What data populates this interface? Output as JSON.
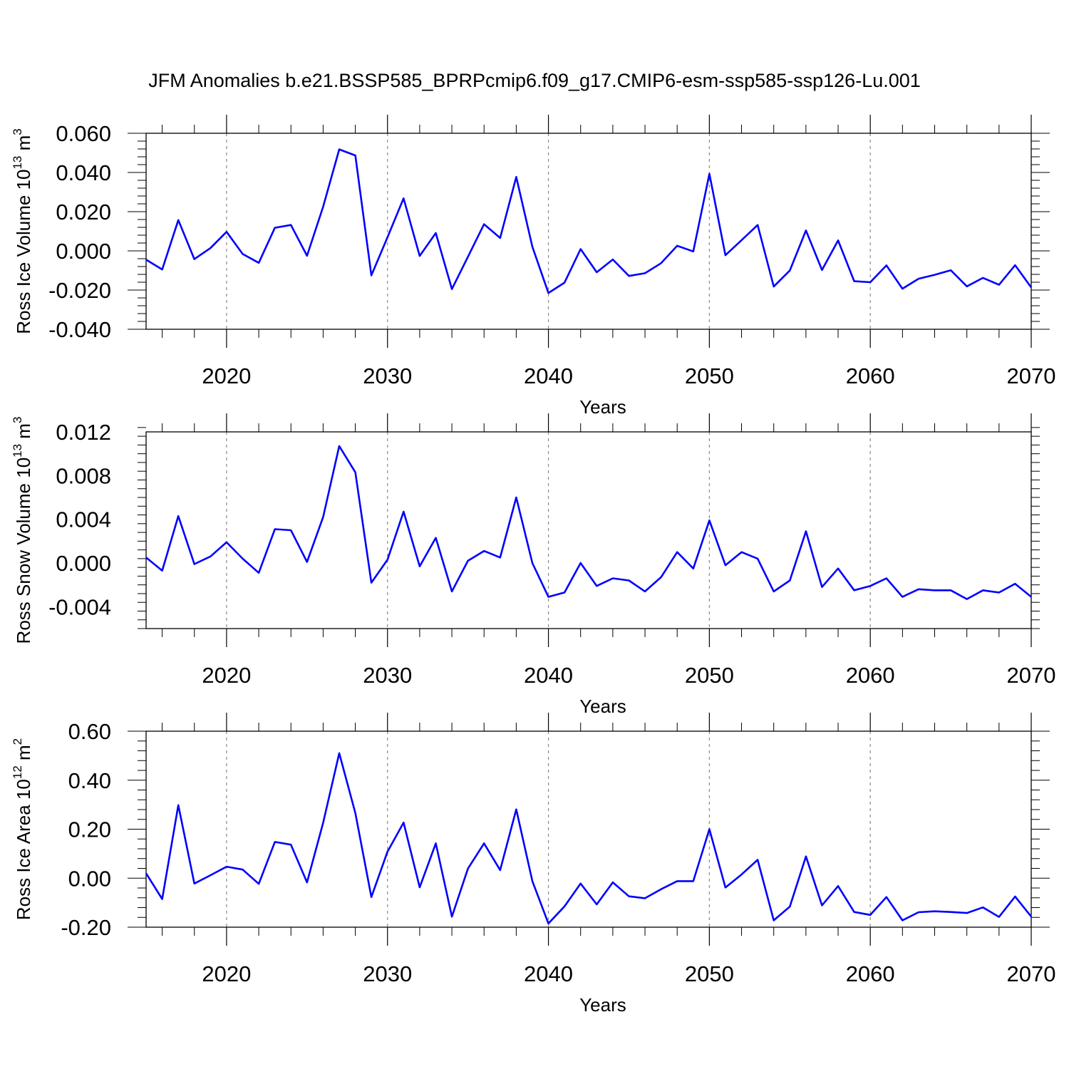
{
  "page": {
    "title": "JFM Anomalies b.e21.BSSP585_BPRPcmip6.f09_g17.CMIP6-esm-ssp585-ssp126-Lu.001"
  },
  "colors": {
    "line": "#0000ff",
    "grid": "#888888",
    "axis": "#000000"
  },
  "chart_data": [
    {
      "type": "line",
      "title": "",
      "xlabel": "Years",
      "ylabel": "Ross Ice Volume 10",
      "ylabel_exp": "13",
      "ylabel_unit": " m",
      "ylabel_unit_exp": "3",
      "xlim": [
        2015,
        2070
      ],
      "ylim": [
        -0.04,
        0.06
      ],
      "xticks": [
        2020,
        2030,
        2040,
        2050,
        2060,
        2070
      ],
      "xtick_labels": [
        "2020",
        "2030",
        "2040",
        "2050",
        "2060",
        "2070"
      ],
      "yticks": [
        -0.04,
        -0.02,
        0.0,
        0.02,
        0.04,
        0.06
      ],
      "ytick_labels": [
        "-0.040",
        "-0.020",
        "0.000",
        "0.020",
        "0.040",
        "0.060"
      ],
      "grid": "vertical dashed at major x ticks",
      "series": [
        {
          "x": [
            2015,
            2016,
            2017,
            2018,
            2019,
            2020,
            2021,
            2022,
            2023,
            2024,
            2025,
            2026,
            2027,
            2028,
            2029,
            2030,
            2031,
            2032,
            2033,
            2034,
            2035,
            2036,
            2037,
            2038,
            2039,
            2040,
            2041,
            2042,
            2043,
            2044,
            2045,
            2046,
            2047,
            2048,
            2049,
            2050,
            2051,
            2052,
            2053,
            2054,
            2055,
            2056,
            2057,
            2058,
            2059,
            2060,
            2061,
            2062,
            2063,
            2064,
            2065,
            2066,
            2067,
            2068,
            2069,
            2070
          ],
          "y": [
            -0.0045,
            -0.0095,
            0.0157,
            -0.0042,
            0.0014,
            0.0097,
            -0.0016,
            -0.0061,
            0.0118,
            0.0132,
            -0.0025,
            0.0225,
            0.0518,
            0.0487,
            -0.0125,
            0.0069,
            0.0268,
            -0.0026,
            0.0091,
            -0.0195,
            -0.003,
            0.0136,
            0.0066,
            0.0377,
            0.0021,
            -0.0215,
            -0.0162,
            0.0009,
            -0.0109,
            -0.0044,
            -0.0128,
            -0.0114,
            -0.0063,
            0.0026,
            -0.0003,
            0.0393,
            -0.0022,
            0.0054,
            0.0132,
            -0.0182,
            -0.01,
            0.0104,
            -0.0098,
            0.0053,
            -0.0155,
            -0.016,
            -0.0074,
            -0.0193,
            -0.0142,
            -0.0122,
            -0.0099,
            -0.0181,
            -0.0138,
            -0.0173,
            -0.0073,
            -0.0187
          ]
        }
      ]
    },
    {
      "type": "line",
      "title": "",
      "xlabel": "Years",
      "ylabel": "Ross Snow Volume 10",
      "ylabel_exp": "13",
      "ylabel_unit": " m",
      "ylabel_unit_exp": "3",
      "xlim": [
        2015,
        2070
      ],
      "ylim": [
        -0.006,
        0.012
      ],
      "xticks": [
        2020,
        2030,
        2040,
        2050,
        2060,
        2070
      ],
      "xtick_labels": [
        "2020",
        "2030",
        "2040",
        "2050",
        "2060",
        "2070"
      ],
      "yticks": [
        -0.004,
        0.0,
        0.004,
        0.008,
        0.012
      ],
      "ytick_labels": [
        "-0.004",
        "0.000",
        "0.004",
        "0.008",
        "0.012"
      ],
      "grid": "vertical dashed at major x ticks",
      "series": [
        {
          "x": [
            2015,
            2016,
            2017,
            2018,
            2019,
            2020,
            2021,
            2022,
            2023,
            2024,
            2025,
            2026,
            2027,
            2028,
            2029,
            2030,
            2031,
            2032,
            2033,
            2034,
            2035,
            2036,
            2037,
            2038,
            2039,
            2040,
            2041,
            2042,
            2043,
            2044,
            2045,
            2046,
            2047,
            2048,
            2049,
            2050,
            2051,
            2052,
            2053,
            2054,
            2055,
            2056,
            2057,
            2058,
            2059,
            2060,
            2061,
            2062,
            2063,
            2064,
            2065,
            2066,
            2067,
            2068,
            2069,
            2070
          ],
          "y": [
            0.0005,
            -0.0007,
            0.0043,
            -0.0001,
            0.0006,
            0.0019,
            0.0004,
            -0.0009,
            0.0031,
            0.003,
            0.0001,
            0.0042,
            0.0107,
            0.0083,
            -0.0018,
            0.0003,
            0.0047,
            -0.0003,
            0.0023,
            -0.0026,
            0.0002,
            0.0011,
            0.0005,
            0.006,
            0.0,
            -0.0031,
            -0.0027,
            0.0,
            -0.0021,
            -0.0014,
            -0.0016,
            -0.0026,
            -0.0013,
            0.001,
            -0.0005,
            0.0039,
            -0.0002,
            0.001,
            0.0004,
            -0.0026,
            -0.0016,
            0.0029,
            -0.0022,
            -0.0005,
            -0.0025,
            -0.0021,
            -0.0014,
            -0.0031,
            -0.0024,
            -0.0025,
            -0.0025,
            -0.0033,
            -0.0025,
            -0.0027,
            -0.0019,
            -0.0031
          ]
        }
      ]
    },
    {
      "type": "line",
      "title": "",
      "xlabel": "Years",
      "ylabel": "Ross Ice Area 10",
      "ylabel_exp": "12",
      "ylabel_unit": " m",
      "ylabel_unit_exp": "2",
      "xlim": [
        2015,
        2070
      ],
      "ylim": [
        -0.2,
        0.6
      ],
      "xticks": [
        2020,
        2030,
        2040,
        2050,
        2060,
        2070
      ],
      "xtick_labels": [
        "2020",
        "2030",
        "2040",
        "2050",
        "2060",
        "2070"
      ],
      "yticks": [
        -0.2,
        0.0,
        0.2,
        0.4,
        0.6
      ],
      "ytick_labels": [
        "-0.20",
        "0.00",
        "0.20",
        "0.40",
        "0.60"
      ],
      "grid": "vertical dashed at major x ticks",
      "series": [
        {
          "x": [
            2015,
            2016,
            2017,
            2018,
            2019,
            2020,
            2021,
            2022,
            2023,
            2024,
            2025,
            2026,
            2027,
            2028,
            2029,
            2030,
            2031,
            2032,
            2033,
            2034,
            2035,
            2036,
            2037,
            2038,
            2039,
            2040,
            2041,
            2042,
            2043,
            2044,
            2045,
            2046,
            2047,
            2048,
            2049,
            2050,
            2051,
            2052,
            2053,
            2054,
            2055,
            2056,
            2057,
            2058,
            2059,
            2060,
            2061,
            2062,
            2063,
            2064,
            2065,
            2066,
            2067,
            2068,
            2069,
            2070
          ],
          "y": [
            0.02,
            -0.085,
            0.298,
            -0.022,
            0.012,
            0.047,
            0.035,
            -0.023,
            0.148,
            0.137,
            -0.017,
            0.226,
            0.51,
            0.266,
            -0.077,
            0.108,
            0.227,
            -0.037,
            0.142,
            -0.157,
            0.039,
            0.142,
            0.033,
            0.281,
            -0.012,
            -0.185,
            -0.115,
            -0.022,
            -0.107,
            -0.017,
            -0.074,
            -0.082,
            -0.045,
            -0.012,
            -0.012,
            0.2,
            -0.038,
            0.015,
            0.075,
            -0.172,
            -0.116,
            0.089,
            -0.111,
            -0.032,
            -0.138,
            -0.15,
            -0.077,
            -0.172,
            -0.139,
            -0.135,
            -0.138,
            -0.142,
            -0.119,
            -0.158,
            -0.075,
            -0.157
          ]
        }
      ]
    }
  ]
}
